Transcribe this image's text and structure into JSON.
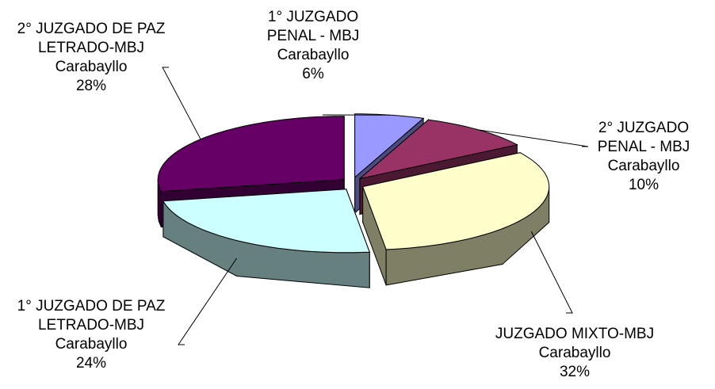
{
  "chart_data": {
    "type": "pie3d",
    "categories": [
      "1° JUZGADO PENAL - MBJ Carabayllo",
      "2° JUZGADO PENAL - MBJ Carabayllo",
      "JUZGADO MIXTO-MBJ Carabayllo",
      "1° JUZGADO DE PAZ LETRADO-MBJ Carabayllo",
      "2° JUZGADO DE PAZ LETRADO-MBJ Carabayllo"
    ],
    "values": [
      6,
      10,
      32,
      24,
      28
    ],
    "value_labels": [
      "6%",
      "10%",
      "32%",
      "24%",
      "28%"
    ],
    "colors": [
      "#9999ff",
      "#993366",
      "#ffffcc",
      "#ccffff",
      "#660066"
    ]
  }
}
